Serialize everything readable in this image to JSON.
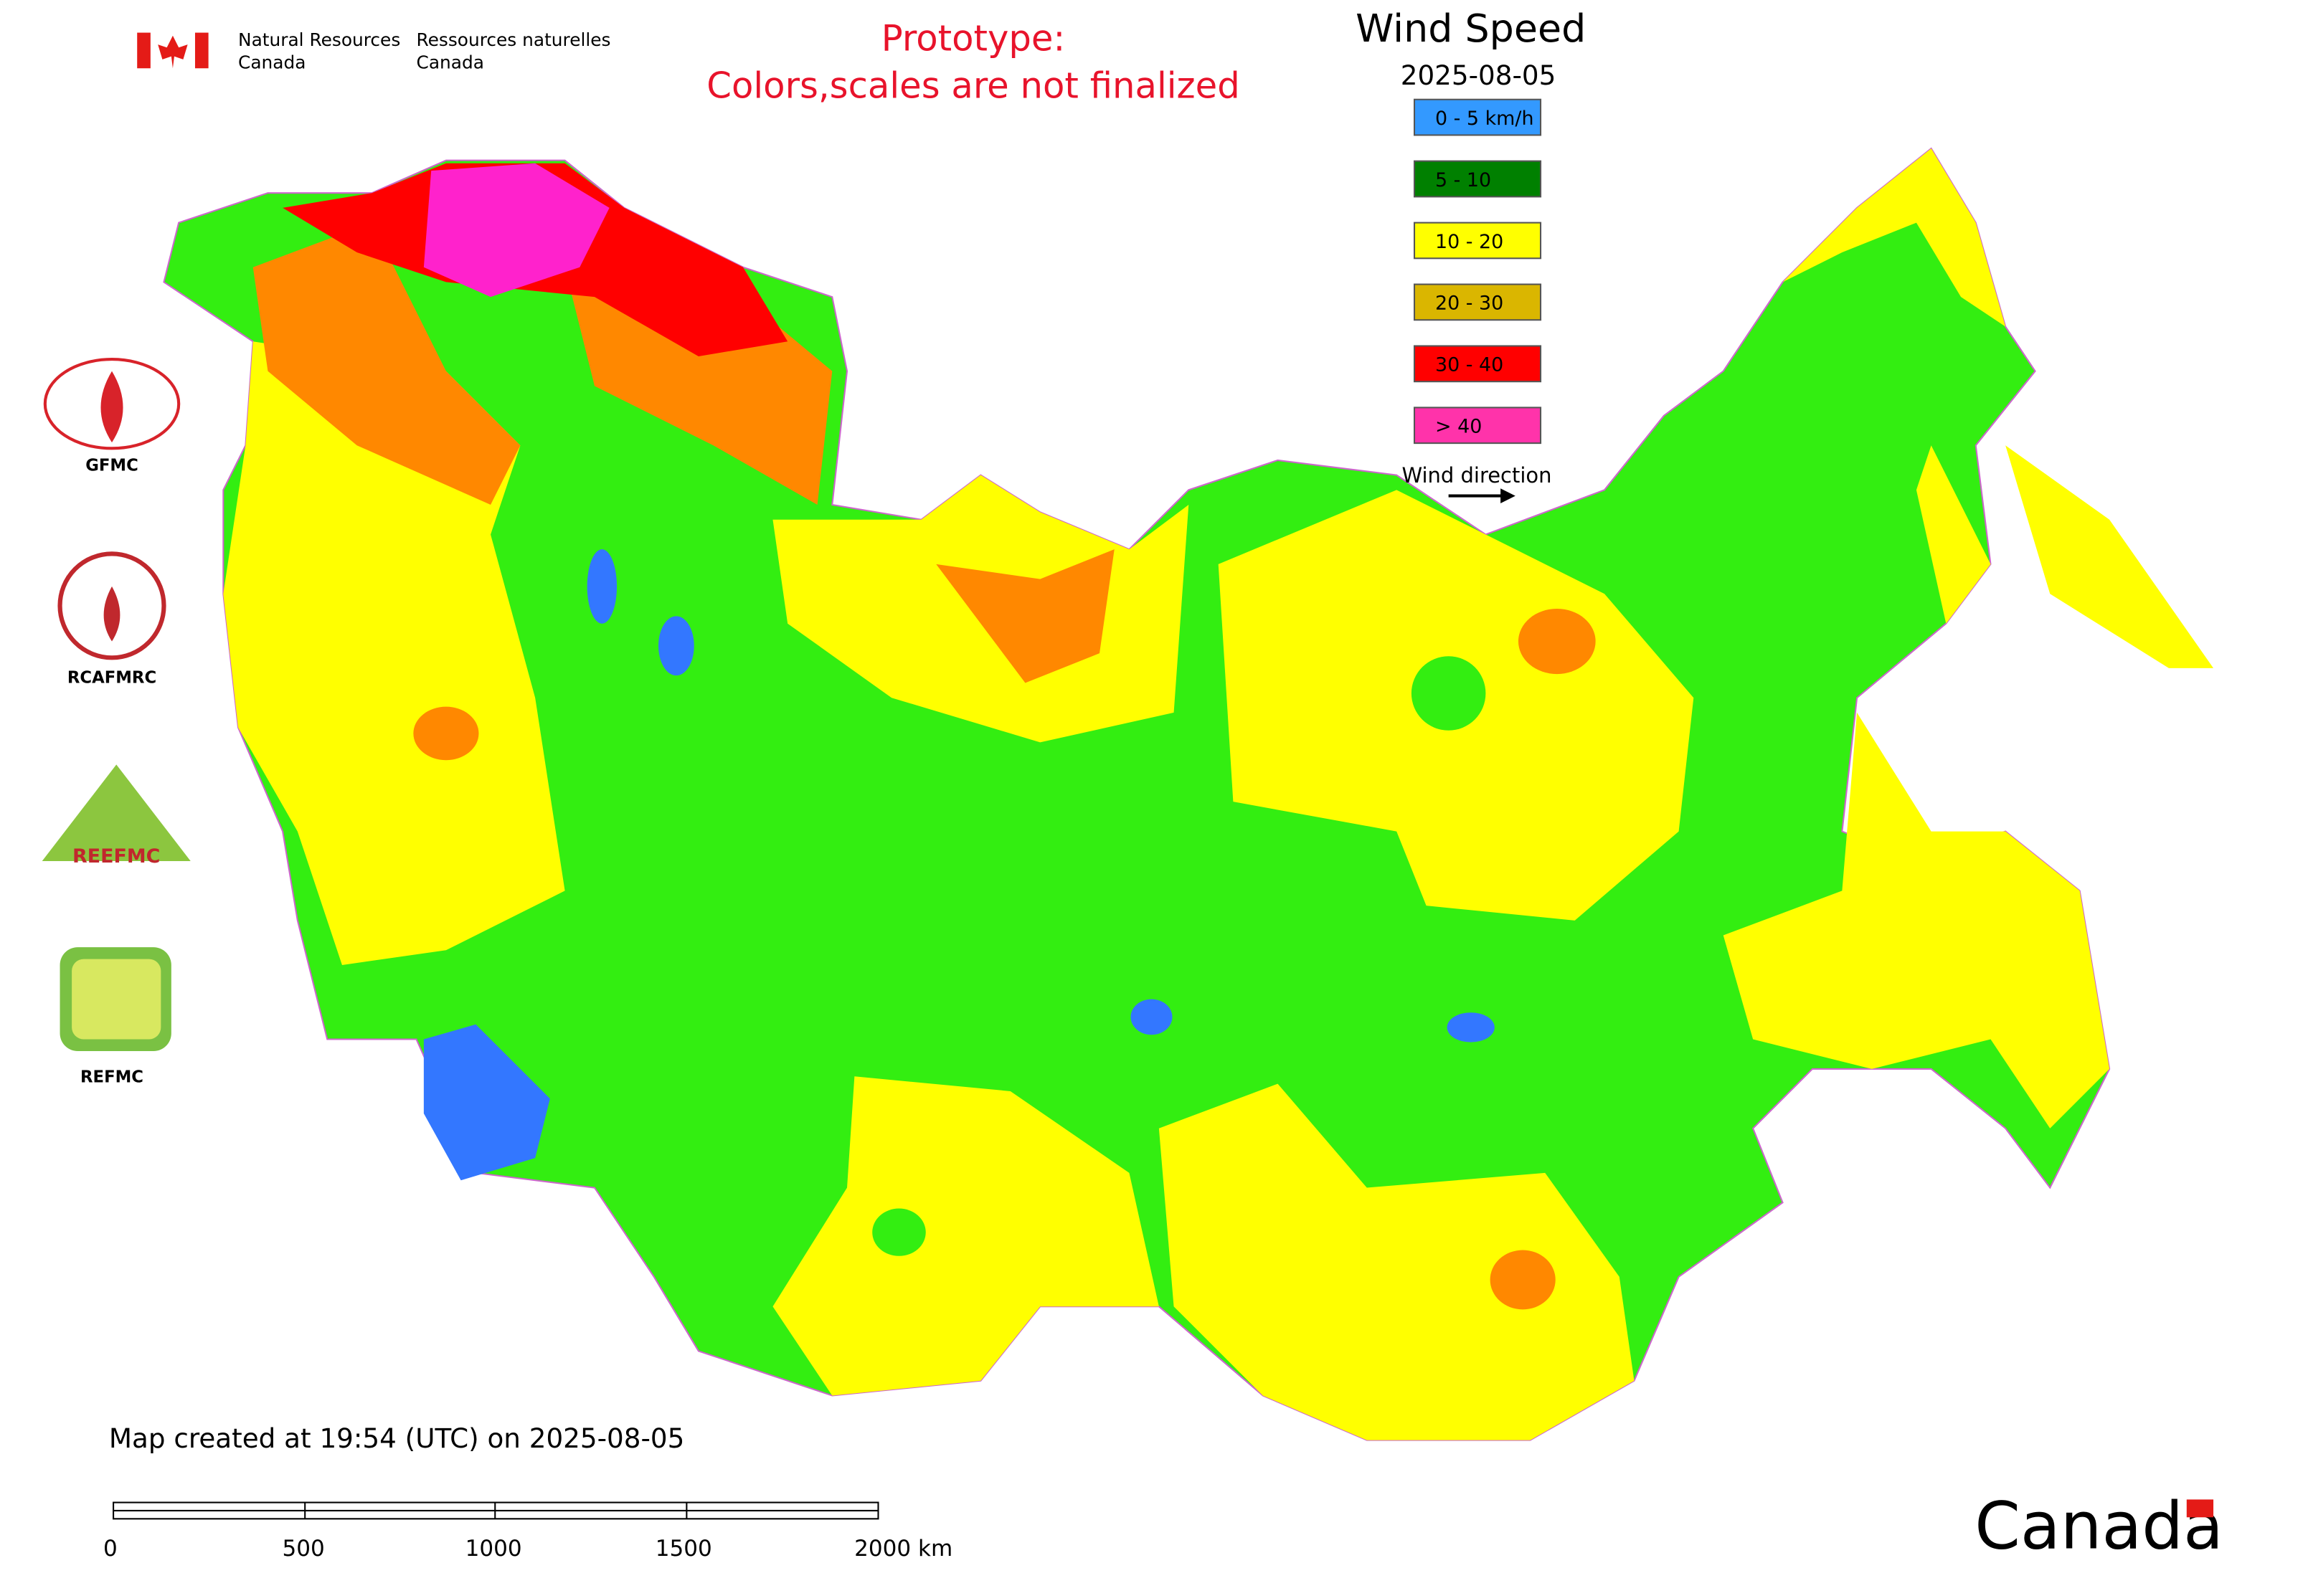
{
  "header": {
    "agency_en": [
      "Natural Resources",
      "Canada"
    ],
    "agency_fr": [
      "Ressources naturelles",
      "Canada"
    ],
    "notice": [
      "Prototype:",
      "Colors,scales are not finalized"
    ]
  },
  "legend": {
    "title": "Wind Speed",
    "date": "2025-08-05",
    "items": [
      {
        "label": "0 - 5 km/h",
        "color": "#3399ff"
      },
      {
        "label": "5 - 10",
        "color": "#008000"
      },
      {
        "label": "10 - 20",
        "color": "#ffff00"
      },
      {
        "label": "20 - 30",
        "color": "#dab600"
      },
      {
        "label": "30 - 40",
        "color": "#ff0000"
      },
      {
        "label": "> 40",
        "color": "#ff33aa"
      }
    ],
    "direction": "Wind direction"
  },
  "logos": [
    "GFMC",
    "RCAFMRC",
    "REEFMC",
    "REFMC"
  ],
  "footer": {
    "created": "Map created at 19:54 (UTC) on 2025-08-05",
    "scale": [
      "0",
      "500",
      "1000",
      "1500",
      "2000 km"
    ],
    "wordmark": "Canada"
  }
}
